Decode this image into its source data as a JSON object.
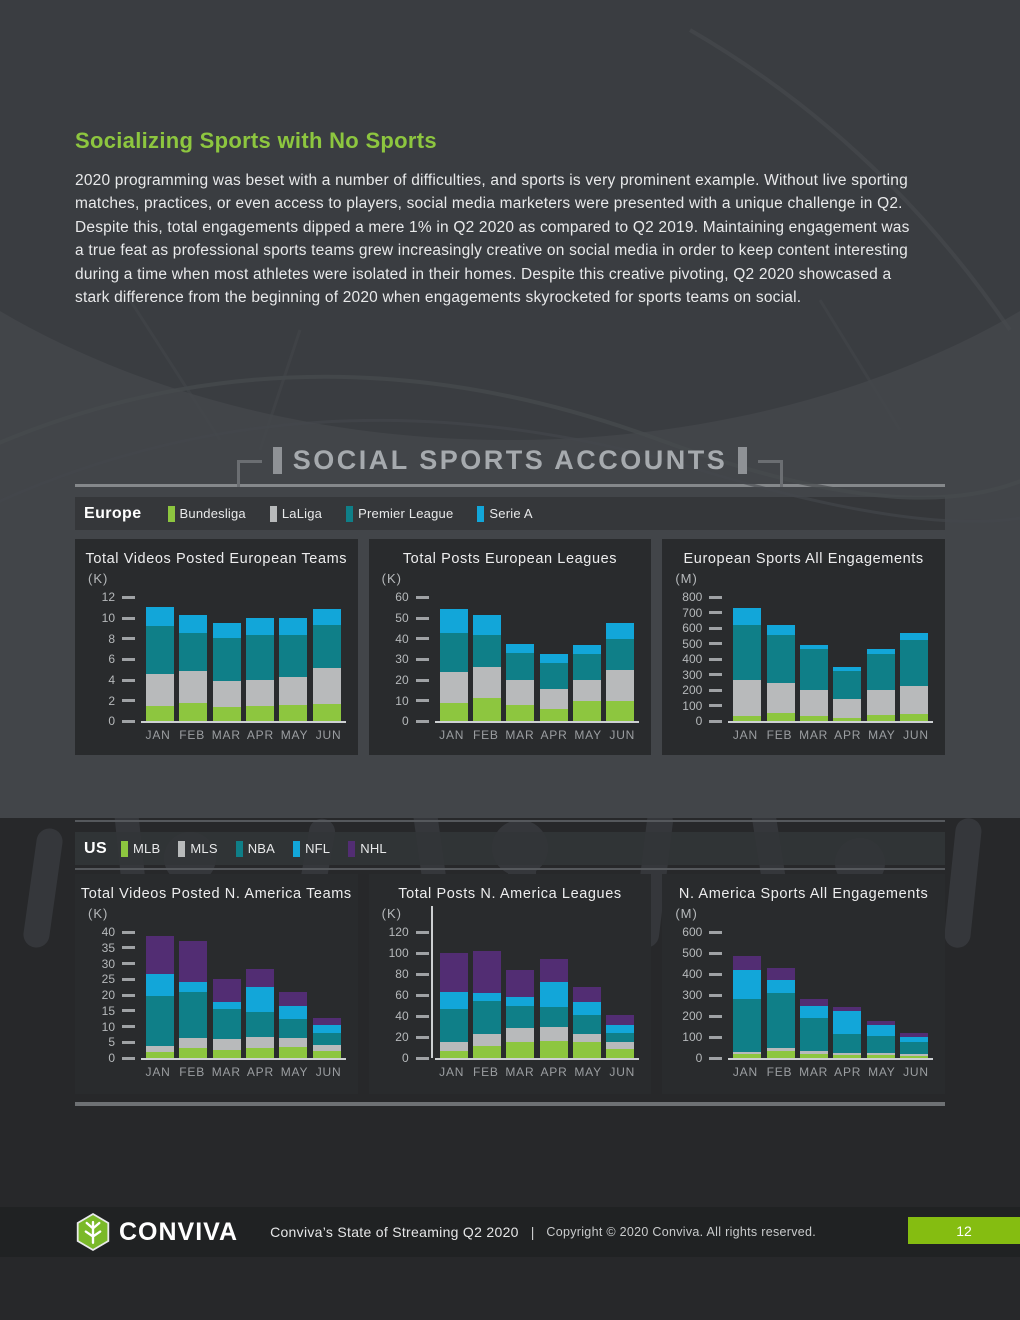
{
  "intro": {
    "heading": "Socializing Sports with No Sports",
    "paragraph": "2020 programming was beset with a number of difficulties, and sports is very prominent example. Without live sporting matches, practices, or even access to players, social media marketers were presented with a unique challenge in Q2. Despite this, total engagements dipped a mere 1% in Q2 2020 as compared to Q2 2019. Maintaining engagement was a true feat as professional sports teams grew increasingly creative on social media in order to keep content interesting during a time when most athletes were isolated in their homes. Despite this creative pivoting, Q2 2020 showcased a stark difference from the beginning of 2020 when engagements skyrocketed for sports teams on social."
  },
  "section": {
    "title": "SOCIAL SPORTS ACCOUNTS"
  },
  "bands": {
    "europe": {
      "label": "Europe",
      "legend": [
        {
          "label": "Bundesliga",
          "color": "#8dc63f"
        },
        {
          "label": "LaLiga",
          "color": "#b8babb"
        },
        {
          "label": "Premier League",
          "color": "#0f7f88"
        },
        {
          "label": "Serie A",
          "color": "#12a6d9"
        }
      ]
    },
    "us": {
      "label": "US",
      "legend": [
        {
          "label": "MLB",
          "color": "#8dc63f"
        },
        {
          "label": "MLS",
          "color": "#b8babb"
        },
        {
          "label": "NBA",
          "color": "#0f7f88"
        },
        {
          "label": "NFL",
          "color": "#12a6d9"
        },
        {
          "label": "NHL",
          "color": "#522d73"
        }
      ]
    }
  },
  "chart_data": [
    {
      "type": "bar",
      "stacked": true,
      "title": "Total Videos Posted European Teams",
      "unit": "(K)",
      "ylim": [
        0,
        12
      ],
      "yticks": [
        12,
        10,
        8,
        6,
        4,
        2,
        0
      ],
      "categories": [
        "JAN",
        "FEB",
        "MAR",
        "APR",
        "MAY",
        "JUN"
      ],
      "series": [
        {
          "name": "Bundesliga",
          "color": "#8dc63f",
          "values": [
            1.5,
            1.8,
            1.4,
            1.5,
            1.6,
            1.7
          ]
        },
        {
          "name": "LaLiga",
          "color": "#b8babb",
          "values": [
            3.1,
            3.1,
            2.5,
            2.5,
            2.7,
            3.5
          ]
        },
        {
          "name": "Premier League",
          "color": "#0f7f88",
          "values": [
            4.6,
            3.7,
            4.2,
            4.4,
            4.1,
            4.1
          ]
        },
        {
          "name": "Serie A",
          "color": "#12a6d9",
          "values": [
            1.9,
            1.7,
            1.4,
            1.6,
            1.6,
            1.6
          ]
        }
      ]
    },
    {
      "type": "bar",
      "stacked": true,
      "title": "Total Posts European Leagues",
      "unit": "(K)",
      "ylim": [
        0,
        60
      ],
      "yticks": [
        60,
        50,
        40,
        30,
        20,
        10,
        0
      ],
      "categories": [
        "JAN",
        "FEB",
        "MAR",
        "APR",
        "MAY",
        "JUN"
      ],
      "series": [
        {
          "name": "Bundesliga",
          "color": "#8dc63f",
          "values": [
            9,
            11.5,
            8,
            6,
            10,
            10
          ]
        },
        {
          "name": "LaLiga",
          "color": "#b8babb",
          "values": [
            15,
            15,
            12,
            9.5,
            10,
            15
          ]
        },
        {
          "name": "Premier League",
          "color": "#0f7f88",
          "values": [
            19,
            15.5,
            13,
            13,
            12.5,
            15
          ]
        },
        {
          "name": "Serie A",
          "color": "#12a6d9",
          "values": [
            11.5,
            9.5,
            4.5,
            4,
            4.5,
            7.5
          ]
        }
      ]
    },
    {
      "type": "bar",
      "stacked": true,
      "title": "European Sports All Engagements",
      "unit": "(M)",
      "ylim": [
        0,
        800
      ],
      "yticks": [
        800,
        700,
        600,
        500,
        400,
        300,
        200,
        100,
        0
      ],
      "categories": [
        "JAN",
        "FEB",
        "MAR",
        "APR",
        "MAY",
        "JUN"
      ],
      "series": [
        {
          "name": "Bundesliga",
          "color": "#8dc63f",
          "values": [
            35,
            55,
            35,
            20,
            40,
            45
          ]
        },
        {
          "name": "LaLiga",
          "color": "#b8babb",
          "values": [
            235,
            195,
            170,
            125,
            165,
            185
          ]
        },
        {
          "name": "Premier League",
          "color": "#0f7f88",
          "values": [
            355,
            310,
            260,
            180,
            230,
            295
          ]
        },
        {
          "name": "Serie A",
          "color": "#12a6d9",
          "values": [
            105,
            65,
            30,
            25,
            30,
            45
          ]
        }
      ]
    },
    {
      "type": "bar",
      "stacked": true,
      "title": "Total Videos Posted N. America Teams",
      "unit": "(K)",
      "ylim": [
        0,
        40
      ],
      "yticks": [
        40,
        35,
        30,
        25,
        20,
        15,
        10,
        5,
        0
      ],
      "categories": [
        "JAN",
        "FEB",
        "MAR",
        "APR",
        "MAY",
        "JUN"
      ],
      "series": [
        {
          "name": "MLB",
          "color": "#8dc63f",
          "values": [
            1.8,
            3.1,
            2.6,
            3.2,
            3.5,
            2.2
          ]
        },
        {
          "name": "MLS",
          "color": "#b8babb",
          "values": [
            1.9,
            3.2,
            3.4,
            3.6,
            2.8,
            2.0
          ]
        },
        {
          "name": "NBA",
          "color": "#0f7f88",
          "values": [
            16.1,
            14.7,
            9.5,
            7.7,
            6.2,
            3.6
          ]
        },
        {
          "name": "NFL",
          "color": "#12a6d9",
          "values": [
            7.0,
            3.0,
            2.3,
            8.2,
            4.1,
            2.6
          ]
        },
        {
          "name": "NHL",
          "color": "#522d73",
          "values": [
            11.9,
            13.2,
            7.4,
            5.7,
            4.4,
            2.4
          ]
        }
      ]
    },
    {
      "type": "bar",
      "stacked": true,
      "yaxis_line": true,
      "title": "Total Posts N. America Leagues",
      "unit": "(K)",
      "ylim": [
        0,
        120
      ],
      "yticks": [
        120,
        100,
        80,
        60,
        40,
        20,
        0
      ],
      "categories": [
        "JAN",
        "FEB",
        "MAR",
        "APR",
        "MAY",
        "JUN"
      ],
      "series": [
        {
          "name": "MLB",
          "color": "#8dc63f",
          "values": [
            7,
            11,
            15.5,
            16.5,
            15,
            8.5
          ]
        },
        {
          "name": "MLS",
          "color": "#b8babb",
          "values": [
            8,
            12,
            13.5,
            13.5,
            8,
            7
          ]
        },
        {
          "name": "NBA",
          "color": "#0f7f88",
          "values": [
            32,
            31,
            21,
            19,
            18,
            8
          ]
        },
        {
          "name": "NFL",
          "color": "#12a6d9",
          "values": [
            16,
            7.5,
            8.5,
            23,
            12,
            7.5
          ]
        },
        {
          "name": "NHL",
          "color": "#522d73",
          "values": [
            37,
            40.5,
            25.5,
            22.5,
            15,
            10
          ]
        }
      ]
    },
    {
      "type": "bar",
      "stacked": true,
      "title": "N. America Sports All Engagements",
      "unit": "(M)",
      "ylim": [
        0,
        600
      ],
      "yticks": [
        600,
        500,
        400,
        300,
        200,
        100,
        0
      ],
      "categories": [
        "JAN",
        "FEB",
        "MAR",
        "APR",
        "MAY",
        "JUN"
      ],
      "series": [
        {
          "name": "MLB",
          "color": "#8dc63f",
          "values": [
            20,
            35,
            20,
            15,
            15,
            10
          ]
        },
        {
          "name": "MLS",
          "color": "#b8babb",
          "values": [
            8,
            12,
            12,
            7,
            7,
            7
          ]
        },
        {
          "name": "NBA",
          "color": "#0f7f88",
          "values": [
            252,
            263,
            158,
            93,
            83,
            58
          ]
        },
        {
          "name": "NFL",
          "color": "#12a6d9",
          "values": [
            140,
            60,
            60,
            110,
            50,
            25
          ]
        },
        {
          "name": "NHL",
          "color": "#522d73",
          "values": [
            65,
            60,
            30,
            20,
            20,
            20
          ]
        }
      ]
    }
  ],
  "footer": {
    "brand": "CONVIVA",
    "title": "Conviva’s State of Streaming Q2 2020",
    "separator": "|",
    "copyright": "Copyright © 2020 Conviva. All rights reserved.",
    "page_number": "12"
  },
  "colors": {
    "accent_green": "#8dc63f",
    "page_number_green": "#85bd11",
    "top_background": "#424549",
    "lower_background": "#27282a",
    "panel_background": "#292b2d"
  }
}
